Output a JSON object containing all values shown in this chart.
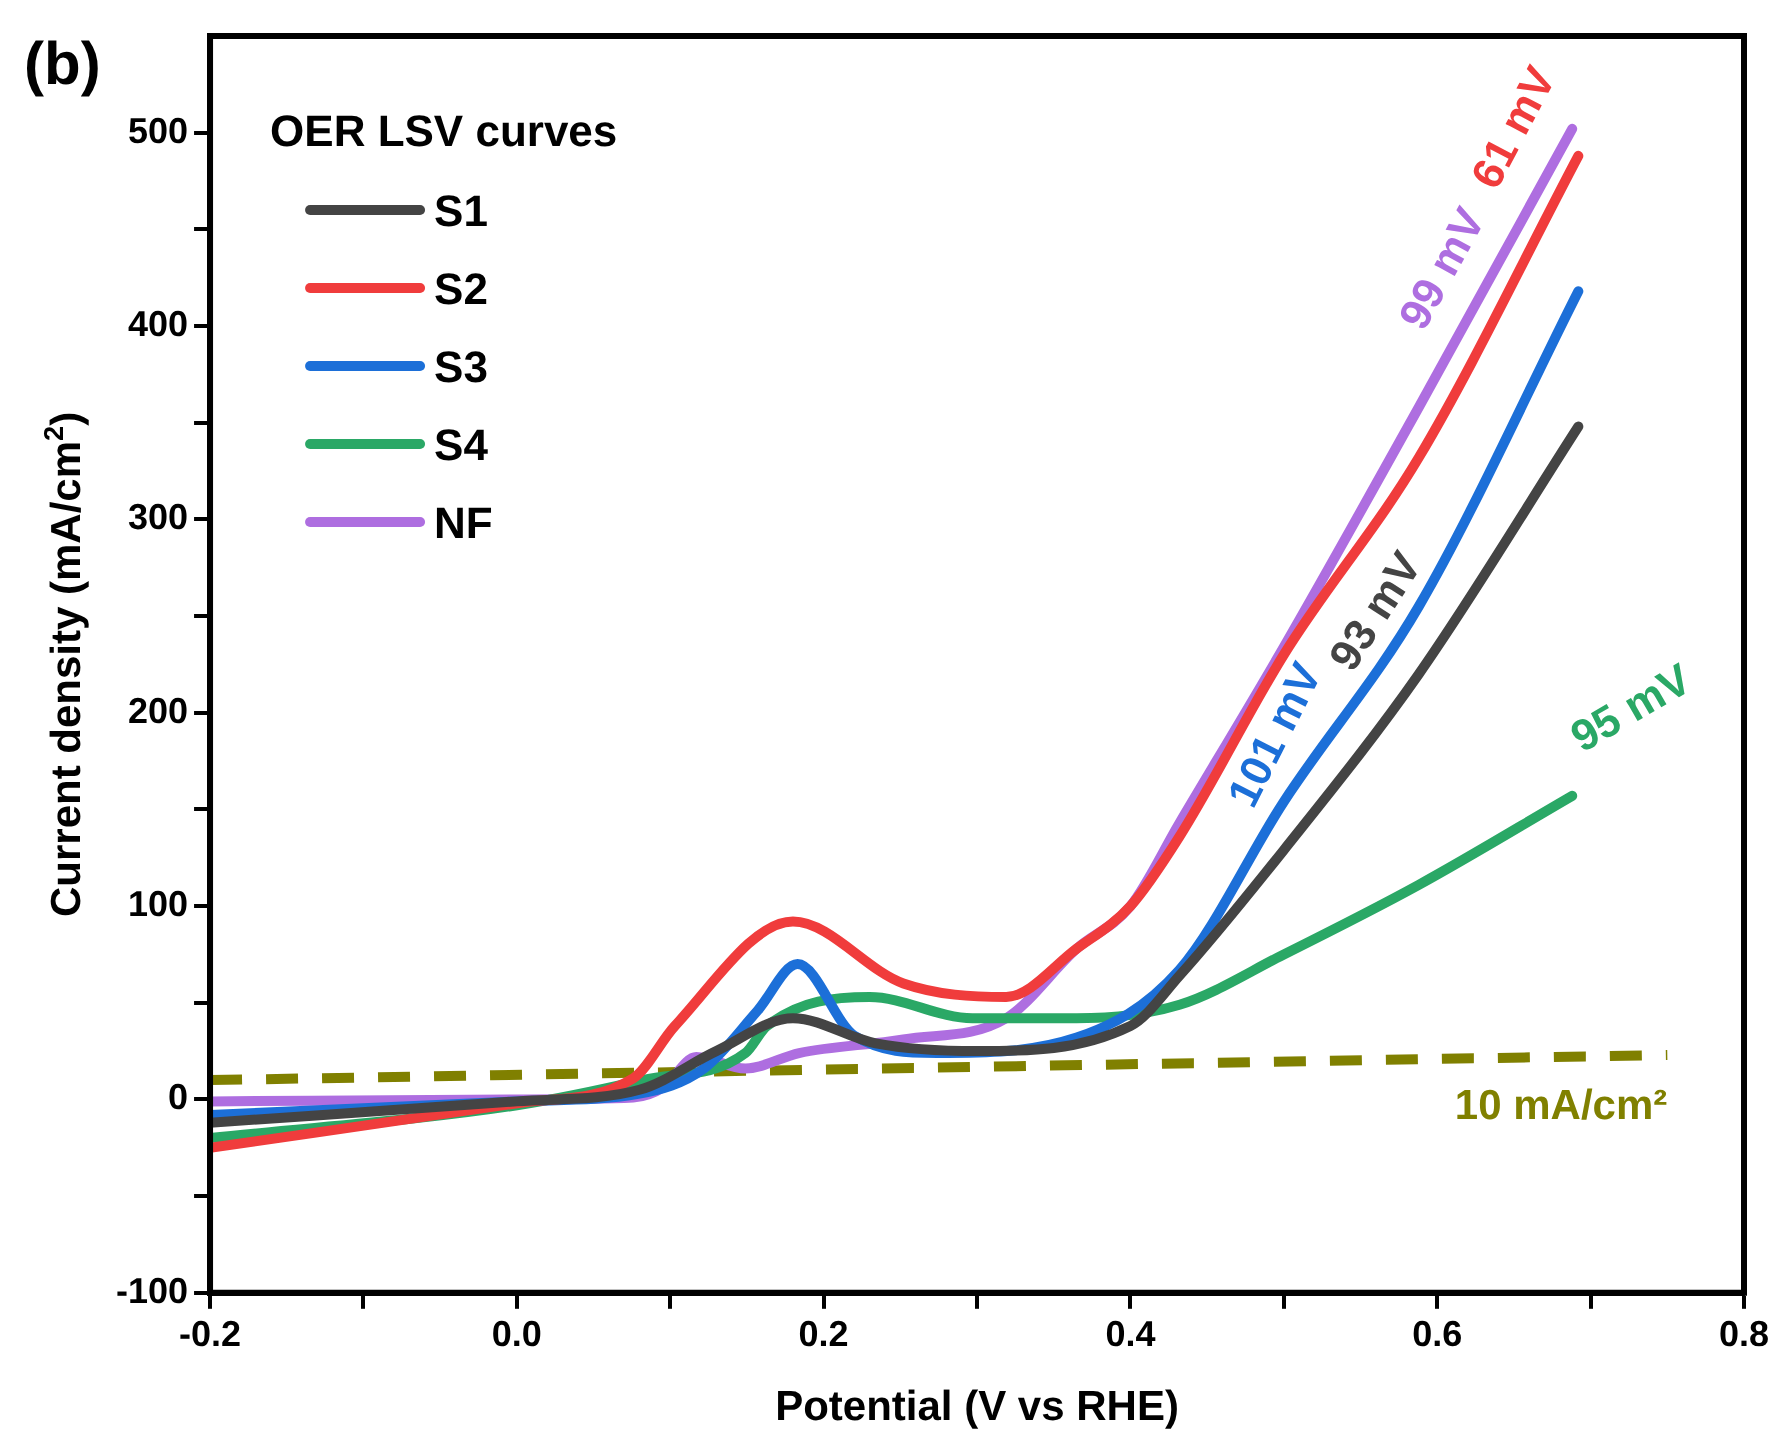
{
  "chart_data": {
    "type": "line",
    "title": "(b)",
    "xlabel": "Potential (V vs RHE)",
    "ylabel": "Current density (mA/cm$^{2}$)",
    "legend_title": "OER LSV curves",
    "legend": "top left",
    "grid": false,
    "marker": "none",
    "xlim": [
      -0.2,
      0.8
    ],
    "ylim": [
      -100,
      550
    ],
    "xticks": [
      -0.2,
      {
        "value": -0.1,
        "label": null
      },
      {
        "value": 0,
        "label": "0.0"
      },
      {
        "value": 0.1,
        "label": null
      },
      0.2,
      {
        "value": 0.3,
        "label": null
      },
      0.4,
      {
        "value": 0.5,
        "label": null
      },
      0.6,
      {
        "value": 0.7,
        "label": null
      },
      0.8
    ],
    "yticks": [
      -100,
      {
        "value": -50,
        "label": null
      },
      0,
      {
        "value": 50,
        "label": null
      },
      100,
      {
        "value": 150,
        "label": null
      },
      200,
      {
        "value": 250,
        "label": null
      },
      300,
      {
        "value": 350,
        "label": null
      },
      400,
      {
        "value": 450,
        "label": null
      },
      500
    ],
    "series": [
      {
        "name": "S1",
        "color": "#444444",
        "x": [
          -0.2,
          0,
          0.08,
          0.13,
          0.18,
          0.234,
          0.3,
          0.4,
          0.432,
          0.5,
          0.588,
          0.692
        ],
        "values": [
          -12,
          -1,
          5,
          25,
          42,
          29,
          25,
          38,
          64,
          129,
          220,
          348
        ]
      },
      {
        "name": "S2",
        "color": "#f03c3c",
        "x": [
          -0.2,
          0,
          0.076,
          0.103,
          0.18,
          0.252,
          0.319,
          0.365,
          0.4,
          0.432,
          0.5,
          0.588,
          0.692
        ],
        "values": [
          -25,
          -2,
          11,
          38,
          92,
          60,
          53,
          78,
          100,
          136,
          230,
          332,
          488
        ]
      },
      {
        "name": "S3",
        "color": "#1c6fd8",
        "x": [
          -0.2,
          0,
          0.08,
          0.122,
          0.157,
          0.183,
          0.22,
          0.274,
          0.365,
          0.432,
          0.5,
          0.588,
          0.692
        ],
        "values": [
          -8,
          -1,
          3,
          16,
          46,
          70,
          33,
          24,
          32,
          67,
          154,
          255,
          418
        ]
      },
      {
        "name": "S4",
        "color": "#2aa866",
        "x": [
          -0.2,
          0,
          0.082,
          0.149,
          0.163,
          0.23,
          0.297,
          0.365,
          0.432,
          0.5,
          0.588,
          0.688
        ],
        "values": [
          -20,
          -3,
          10,
          24,
          38,
          53,
          42,
          42,
          49,
          75,
          111,
          157
        ]
      },
      {
        "name": "NF",
        "color": "#ae6ee0",
        "x": [
          -0.2,
          0,
          0.076,
          0.095,
          0.117,
          0.149,
          0.184,
          0.252,
          0.319,
          0.365,
          0.4,
          0.432,
          0.5,
          0.588,
          0.688
        ],
        "values": [
          -1,
          0,
          1,
          6,
          22,
          16,
          24,
          31,
          42,
          78,
          100,
          143,
          234,
          358,
          502
        ]
      },
      {
        "name": "10 mA/cm²",
        "color": "#808000",
        "line_style": "dashed",
        "x": [
          -0.2,
          0.75
        ],
        "values": [
          10,
          23
        ]
      }
    ],
    "annotations": [
      "93 mV",
      "61 mV",
      "101 mV",
      "95 mV",
      "99 mV"
    ]
  }
}
